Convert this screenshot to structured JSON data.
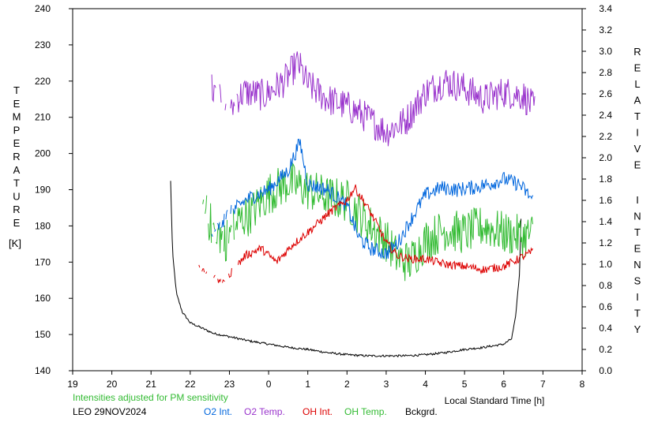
{
  "chart_data": {
    "type": "line",
    "xlabel": "Local Standard Time [h]",
    "ylabel_left": "TEMPERATURE",
    "ylabel_left_unit": "[K]",
    "ylabel_right": "RELATIVE INTENSITY",
    "x_ticks": [
      "19",
      "20",
      "21",
      "22",
      "23",
      "0",
      "1",
      "2",
      "3",
      "4",
      "5",
      "6",
      "7",
      "8"
    ],
    "xlim": [
      19,
      32
    ],
    "ylim_left": [
      140,
      240
    ],
    "ylim_right": [
      0.0,
      3.4
    ],
    "y_left_ticks": [
      "140",
      "150",
      "160",
      "170",
      "180",
      "190",
      "200",
      "210",
      "220",
      "230",
      "240"
    ],
    "y_right_ticks": [
      "0.0",
      "0.2",
      "0.4",
      "0.6",
      "0.8",
      "1.0",
      "1.2",
      "1.4",
      "1.6",
      "1.8",
      "2.0",
      "2.2",
      "2.4",
      "2.6",
      "2.8",
      "3.0",
      "3.2",
      "3.4"
    ],
    "note": "Intensities adjusted for PM sensitivity",
    "station_date": "LEO 29NOV2024",
    "series": [
      {
        "name": "O2 Int.",
        "color": "#0066dd",
        "axis": "right",
        "noise": 0.07,
        "x": [
          22.55,
          23.0,
          23.5,
          24.0,
          24.5,
          24.8,
          25.0,
          25.5,
          26.0,
          26.3,
          26.6,
          27.0,
          27.3,
          27.6,
          28.0,
          28.4,
          28.8,
          29.2,
          29.6,
          30.0,
          30.4,
          30.75
        ],
        "y": [
          1.25,
          1.5,
          1.62,
          1.7,
          1.88,
          2.15,
          1.75,
          1.7,
          1.55,
          1.25,
          1.15,
          1.1,
          1.2,
          1.4,
          1.65,
          1.72,
          1.7,
          1.72,
          1.75,
          1.8,
          1.75,
          1.6
        ]
      },
      {
        "name": "O2 Temp.",
        "color": "#9933cc",
        "axis": "left",
        "noise": 4.5,
        "x": [
          22.45,
          22.9,
          23.4,
          23.9,
          24.4,
          24.75,
          25.0,
          25.5,
          26.0,
          26.5,
          27.0,
          27.5,
          28.0,
          28.5,
          29.0,
          29.5,
          30.0,
          30.5,
          30.8
        ],
        "y": [
          219,
          213,
          217,
          216,
          220,
          225,
          219,
          215,
          213,
          210,
          206,
          209,
          217,
          220,
          218,
          215,
          217,
          216,
          212
        ]
      },
      {
        "name": "OH Int.",
        "color": "#dd0000",
        "axis": "right",
        "noise": 0.04,
        "x": [
          22.2,
          22.5,
          22.9,
          23.4,
          23.8,
          24.2,
          24.6,
          25.0,
          25.3,
          25.6,
          26.0,
          26.2,
          26.5,
          26.8,
          27.0,
          27.3,
          27.6,
          28.0,
          28.5,
          29.0,
          29.5,
          30.0,
          30.75
        ],
        "y": [
          0.98,
          0.88,
          0.85,
          1.08,
          1.15,
          1.02,
          1.18,
          1.3,
          1.4,
          1.5,
          1.6,
          1.72,
          1.55,
          1.35,
          1.2,
          1.08,
          1.05,
          1.05,
          1.0,
          0.98,
          0.95,
          0.98,
          1.12
        ]
      },
      {
        "name": "OH Temp.",
        "color": "#33bb33",
        "axis": "left",
        "noise": 6.0,
        "x": [
          22.2,
          22.5,
          22.9,
          23.2,
          23.6,
          24.0,
          24.5,
          25.0,
          25.5,
          26.0,
          26.5,
          27.0,
          27.3,
          27.6,
          28.0,
          28.5,
          29.0,
          29.5,
          30.0,
          30.5,
          30.75
        ],
        "y": [
          188,
          181,
          176,
          181,
          184,
          189,
          192,
          190,
          188,
          187,
          181,
          176,
          171,
          170,
          176,
          179,
          178,
          180,
          178,
          177,
          178
        ]
      },
      {
        "name": "Bckgrd.",
        "color": "#000000",
        "axis": "right",
        "noise": 0.01,
        "x": [
          21.5,
          21.55,
          21.65,
          21.8,
          22.0,
          22.3,
          22.6,
          23.0,
          23.5,
          24.0,
          24.5,
          25.0,
          25.5,
          26.0,
          26.5,
          27.0,
          27.5,
          28.0,
          28.5,
          29.0,
          29.5,
          30.0,
          30.2,
          30.3,
          30.4,
          30.45
        ],
        "y": [
          1.78,
          1.1,
          0.72,
          0.55,
          0.45,
          0.4,
          0.35,
          0.32,
          0.28,
          0.25,
          0.22,
          0.2,
          0.17,
          0.15,
          0.14,
          0.14,
          0.14,
          0.15,
          0.17,
          0.2,
          0.22,
          0.25,
          0.3,
          0.5,
          0.9,
          1.55
        ]
      }
    ]
  }
}
